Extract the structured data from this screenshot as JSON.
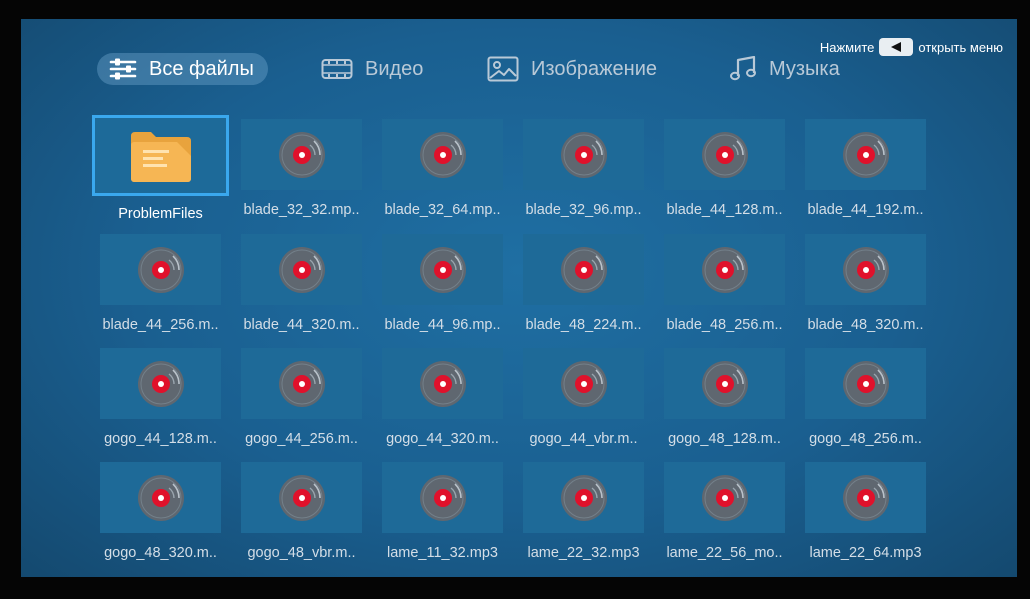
{
  "hint": {
    "before": "Нажмите",
    "after": "открыть меню",
    "key_icon": "left-arrow-key-icon"
  },
  "tabs": [
    {
      "label": "Все файлы",
      "icon": "sliders-icon",
      "active": true
    },
    {
      "label": "Видео",
      "icon": "film-icon",
      "active": false
    },
    {
      "label": "Изображение",
      "icon": "image-icon",
      "active": false
    },
    {
      "label": "Музыка",
      "icon": "music-note-icon",
      "active": false
    }
  ],
  "files": [
    {
      "name": "ProblemFiles",
      "kind": "folder"
    },
    {
      "name": "blade_32_32.mp..",
      "kind": "audio"
    },
    {
      "name": "blade_32_64.mp..",
      "kind": "audio"
    },
    {
      "name": "blade_32_96.mp..",
      "kind": "audio"
    },
    {
      "name": "blade_44_128.m..",
      "kind": "audio"
    },
    {
      "name": "blade_44_192.m..",
      "kind": "audio"
    },
    {
      "name": "blade_44_256.m..",
      "kind": "audio"
    },
    {
      "name": "blade_44_320.m..",
      "kind": "audio"
    },
    {
      "name": "blade_44_96.mp..",
      "kind": "audio"
    },
    {
      "name": "blade_48_224.m..",
      "kind": "audio"
    },
    {
      "name": "blade_48_256.m..",
      "kind": "audio"
    },
    {
      "name": "blade_48_320.m..",
      "kind": "audio"
    },
    {
      "name": "gogo_44_128.m..",
      "kind": "audio"
    },
    {
      "name": "gogo_44_256.m..",
      "kind": "audio"
    },
    {
      "name": "gogo_44_320.m..",
      "kind": "audio"
    },
    {
      "name": "gogo_44_vbr.m..",
      "kind": "audio"
    },
    {
      "name": "gogo_48_128.m..",
      "kind": "audio"
    },
    {
      "name": "gogo_48_256.m..",
      "kind": "audio"
    },
    {
      "name": "gogo_48_320.m..",
      "kind": "audio"
    },
    {
      "name": "gogo_48_vbr.m..",
      "kind": "audio"
    },
    {
      "name": "lame_11_32.mp3",
      "kind": "audio"
    },
    {
      "name": "lame_22_32.mp3",
      "kind": "audio"
    },
    {
      "name": "lame_22_56_mo..",
      "kind": "audio"
    },
    {
      "name": "lame_22_64.mp3",
      "kind": "audio"
    }
  ],
  "colors": {
    "accent": "#3aa8ee",
    "background": "#1a5f90",
    "disc_center": "#e0112b"
  }
}
